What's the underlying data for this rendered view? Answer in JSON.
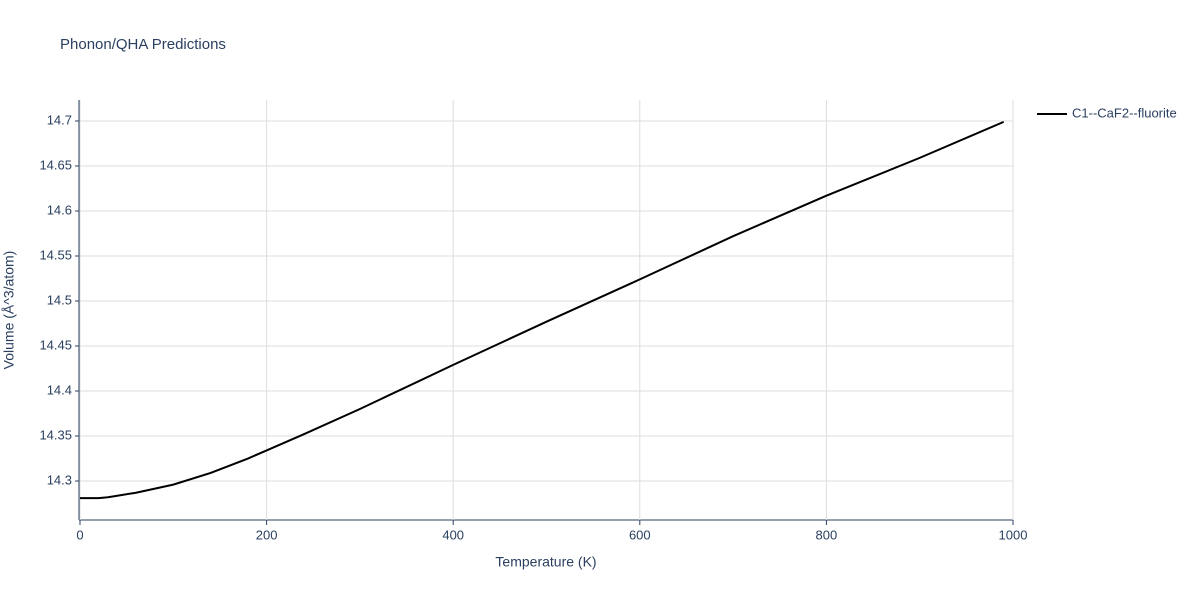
{
  "chart_data": {
    "type": "line",
    "title": "Phonon/QHA Predictions",
    "x_label": "Temperature (K)",
    "y_label": "Volume (Å^3/atom)",
    "x": [
      0,
      20,
      30,
      60,
      100,
      140,
      180,
      200,
      240,
      300,
      400,
      500,
      600,
      700,
      800,
      900,
      990
    ],
    "series": [
      {
        "name": "C1--CaF2--fluorite",
        "color": "#000000",
        "values": [
          14.281,
          14.281,
          14.282,
          14.287,
          14.296,
          14.309,
          14.325,
          14.334,
          14.352,
          14.38,
          14.429,
          14.477,
          14.524,
          14.572,
          14.617,
          14.659,
          14.699
        ]
      }
    ],
    "xlim": [
      0,
      1000
    ],
    "xticks": [
      0,
      200,
      400,
      600,
      800,
      1000
    ],
    "ylim": [
      14.2567,
      14.7233
    ],
    "yticks": [
      14.3,
      14.35,
      14.4,
      14.45,
      14.5,
      14.55,
      14.6,
      14.65,
      14.7
    ],
    "grid": true,
    "legend": "right"
  }
}
